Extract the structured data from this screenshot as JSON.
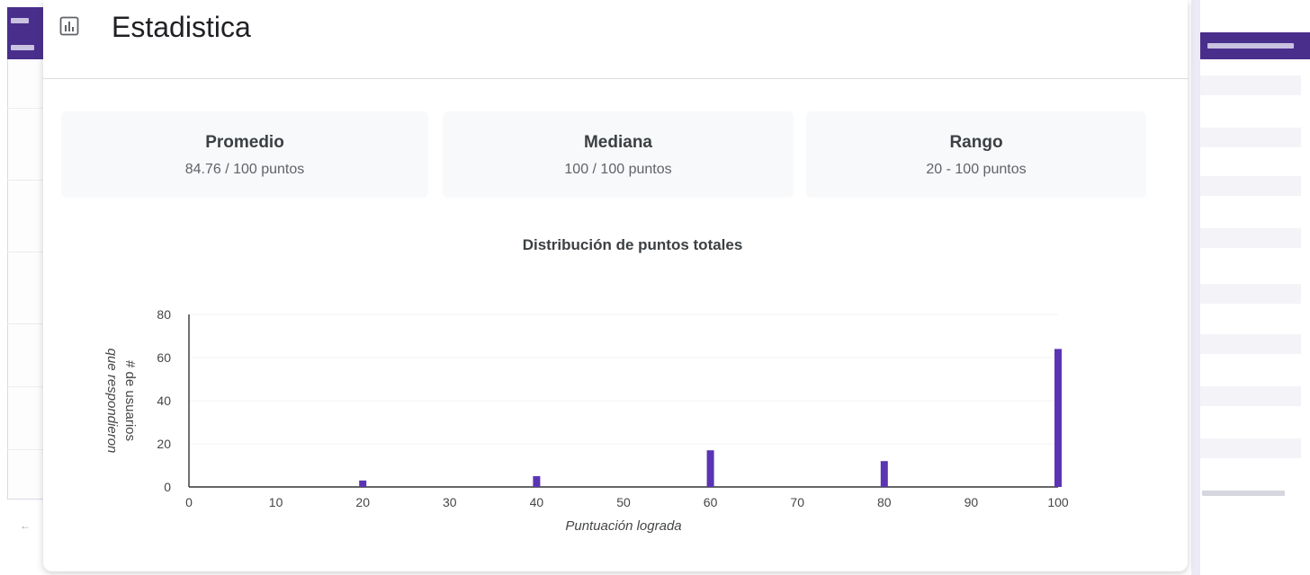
{
  "dialog": {
    "title": "Estadistica",
    "icon": "bar-chart-icon"
  },
  "stats": [
    {
      "label": "Promedio",
      "value": "84.76 / 100 puntos"
    },
    {
      "label": "Mediana",
      "value": "100 / 100 puntos"
    },
    {
      "label": "Rango",
      "value": "20 - 100 puntos"
    }
  ],
  "colors": {
    "accent": "#5b34b4",
    "header_purple": "#4a2e8c"
  },
  "chart_data": {
    "type": "bar",
    "title": "Distribución de puntos totales",
    "xlabel": "Puntuación lograda",
    "ylabel": "# de usuarios que respondieron",
    "xlim": [
      0,
      100
    ],
    "ylim": [
      0,
      80
    ],
    "xticks": [
      0,
      10,
      20,
      30,
      40,
      50,
      60,
      70,
      80,
      90,
      100
    ],
    "yticks": [
      0,
      20,
      40,
      60,
      80
    ],
    "x": [
      20,
      40,
      60,
      80,
      100
    ],
    "values": [
      3,
      5,
      17,
      12,
      64
    ],
    "grid": true,
    "legend": false
  }
}
